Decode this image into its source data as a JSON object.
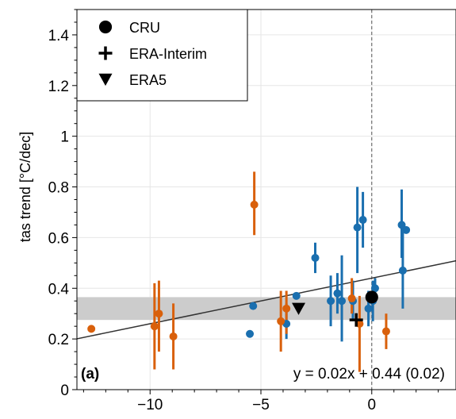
{
  "chart_data": {
    "type": "scatter",
    "ylabel": "tas trend [°C/dec]",
    "xlabel": "",
    "xlim": [
      -13.3,
      3.8
    ],
    "ylim": [
      0,
      1.5
    ],
    "xticks": [
      -10,
      -5,
      0
    ],
    "xtick_labels": [
      "−10",
      "−5",
      "0"
    ],
    "yticks": [
      0,
      0.2,
      0.4,
      0.6,
      0.8,
      1,
      1.2,
      1.4
    ],
    "ytick_labels": [
      "0",
      "0.2",
      "0.4",
      "0.6",
      "0.8",
      "1",
      "1.2",
      "1.4"
    ],
    "grid": true,
    "panel_label": "(a)",
    "annotation": "y = 0.02x + 0.44 (0.02)",
    "colors": {
      "blue": "#1a6faf",
      "orange": "#d9600b",
      "band": "#cccccc",
      "line": "#333333"
    },
    "vline_x": 0,
    "band": {
      "ymin": 0.275,
      "ymax": 0.365
    },
    "regression": {
      "slope": 0.018,
      "intercept": 0.44
    },
    "legend": {
      "position": "top-left",
      "entries": [
        {
          "label": "CRU",
          "marker": "circle"
        },
        {
          "label": "ERA-Interim",
          "marker": "plus"
        },
        {
          "label": "ERA5",
          "marker": "triangle-down"
        }
      ]
    },
    "series": [
      {
        "group": "blue",
        "points": [
          {
            "x": -5.5,
            "y": 0.22
          },
          {
            "x": -5.35,
            "y": 0.33
          },
          {
            "x": -3.85,
            "y": 0.26,
            "err": [
              0.2,
              0.34
            ]
          },
          {
            "x": -3.4,
            "y": 0.37
          },
          {
            "x": -2.55,
            "y": 0.52,
            "err": [
              0.46,
              0.58
            ]
          },
          {
            "x": -1.85,
            "y": 0.35,
            "err": [
              0.25,
              0.45
            ]
          },
          {
            "x": -1.55,
            "y": 0.38,
            "err": [
              0.3,
              0.46
            ]
          },
          {
            "x": -1.35,
            "y": 0.35,
            "err": [
              0.19,
              0.53
            ]
          },
          {
            "x": -0.85,
            "y": 0.35,
            "err": [
              0.27,
              0.43
            ]
          },
          {
            "x": -0.65,
            "y": 0.64,
            "err": [
              0.46,
              0.8
            ]
          },
          {
            "x": -0.4,
            "y": 0.67,
            "err": [
              0.56,
              0.78
            ]
          },
          {
            "x": -0.15,
            "y": 0.32,
            "err": [
              0.25,
              0.39
            ]
          },
          {
            "x": 0.05,
            "y": 0.35,
            "err": [
              0.27,
              0.43
            ]
          },
          {
            "x": 0.15,
            "y": 0.4,
            "err": [
              0.36,
              0.44
            ]
          },
          {
            "x": 1.35,
            "y": 0.65,
            "err": [
              0.52,
              0.79
            ]
          },
          {
            "x": 1.4,
            "y": 0.47,
            "err": [
              0.32,
              0.62
            ]
          },
          {
            "x": 1.55,
            "y": 0.63
          }
        ]
      },
      {
        "group": "orange",
        "points": [
          {
            "x": -12.65,
            "y": 0.24
          },
          {
            "x": -9.8,
            "y": 0.25,
            "err": [
              0.08,
              0.42
            ]
          },
          {
            "x": -9.6,
            "y": 0.3,
            "err": [
              0.15,
              0.43
            ]
          },
          {
            "x": -8.95,
            "y": 0.21,
            "err": [
              0.08,
              0.34
            ]
          },
          {
            "x": -5.3,
            "y": 0.73,
            "err": [
              0.61,
              0.86
            ]
          },
          {
            "x": -4.1,
            "y": 0.27,
            "err": [
              0.15,
              0.39
            ]
          },
          {
            "x": -3.85,
            "y": 0.32,
            "err": [
              0.22,
              0.39
            ]
          },
          {
            "x": -0.9,
            "y": 0.36,
            "err": [
              0.3,
              0.44
            ]
          },
          {
            "x": -0.55,
            "y": 0.26,
            "err": [
              0.07,
              0.37
            ]
          },
          {
            "x": 0.65,
            "y": 0.23,
            "err": [
              0.16,
              0.3
            ]
          }
        ]
      }
    ],
    "reference_points": [
      {
        "name": "CRU",
        "marker": "circle",
        "x": 0,
        "y": 0.365
      },
      {
        "name": "ERA-Interim",
        "marker": "plus",
        "x": -0.7,
        "y": 0.275
      },
      {
        "name": "ERA5",
        "marker": "triangle-down",
        "x": -3.3,
        "y": 0.32
      }
    ]
  }
}
